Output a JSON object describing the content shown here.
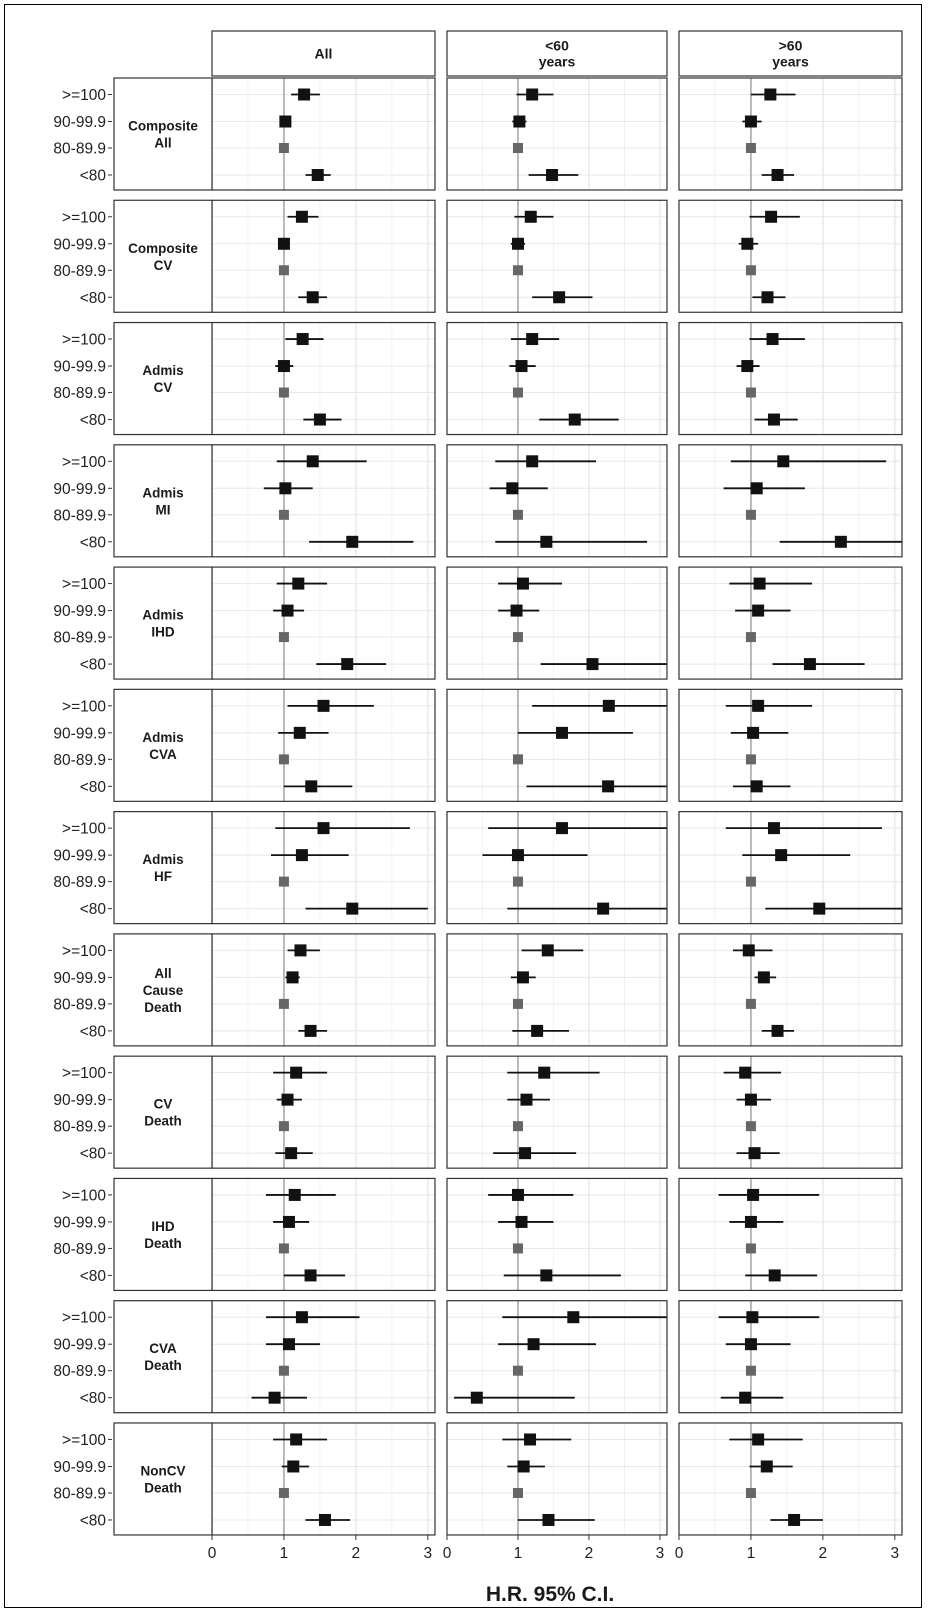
{
  "chart_data": {
    "type": "forest",
    "xlabel": "H.R. 95% C.I.",
    "xlim": [
      0,
      3.1
    ],
    "xticks": [
      0,
      1,
      2,
      3
    ],
    "reference_line": 1,
    "columns": [
      {
        "key": "all",
        "lines": [
          "All"
        ]
      },
      {
        "key": "lt60",
        "lines": [
          "<60",
          "years"
        ]
      },
      {
        "key": "gt60",
        "lines": [
          ">60",
          "years"
        ]
      }
    ],
    "categories": [
      ">=100",
      "90-99.9",
      "80-89.9",
      "<80"
    ],
    "reference_category": "80-89.9",
    "outcomes": [
      {
        "lines": [
          "Composite",
          "All"
        ],
        "data": {
          "all": [
            [
              1.28,
              1.1,
              1.5
            ],
            [
              1.02,
              0.95,
              1.1
            ],
            [
              1,
              1,
              1
            ],
            [
              1.47,
              1.3,
              1.65
            ]
          ],
          "lt60": [
            [
              1.2,
              0.98,
              1.5
            ],
            [
              1.02,
              0.92,
              1.12
            ],
            [
              1,
              1,
              1
            ],
            [
              1.48,
              1.15,
              1.85
            ]
          ],
          "gt60": [
            [
              1.27,
              1.0,
              1.62
            ],
            [
              1.0,
              0.88,
              1.15
            ],
            [
              1,
              1,
              1
            ],
            [
              1.37,
              1.15,
              1.6
            ]
          ]
        }
      },
      {
        "lines": [
          "Composite",
          "CV"
        ],
        "data": {
          "all": [
            [
              1.25,
              1.05,
              1.48
            ],
            [
              1.0,
              0.92,
              1.08
            ],
            [
              1,
              1,
              1
            ],
            [
              1.4,
              1.2,
              1.6
            ]
          ],
          "lt60": [
            [
              1.18,
              0.95,
              1.5
            ],
            [
              1.0,
              0.9,
              1.1
            ],
            [
              1,
              1,
              1
            ],
            [
              1.58,
              1.2,
              2.05
            ]
          ],
          "gt60": [
            [
              1.28,
              0.98,
              1.68
            ],
            [
              0.95,
              0.83,
              1.1
            ],
            [
              1,
              1,
              1
            ],
            [
              1.23,
              1.02,
              1.48
            ]
          ]
        }
      },
      {
        "lines": [
          "Admis",
          "CV"
        ],
        "data": {
          "all": [
            [
              1.26,
              1.02,
              1.55
            ],
            [
              1.0,
              0.88,
              1.13
            ],
            [
              1,
              1,
              1
            ],
            [
              1.5,
              1.27,
              1.8
            ]
          ],
          "lt60": [
            [
              1.2,
              0.9,
              1.58
            ],
            [
              1.05,
              0.88,
              1.25
            ],
            [
              1,
              1,
              1
            ],
            [
              1.8,
              1.3,
              2.42
            ]
          ],
          "gt60": [
            [
              1.3,
              0.98,
              1.75
            ],
            [
              0.95,
              0.8,
              1.12
            ],
            [
              1,
              1,
              1
            ],
            [
              1.32,
              1.05,
              1.65
            ]
          ]
        }
      },
      {
        "lines": [
          "Admis",
          "MI"
        ],
        "data": {
          "all": [
            [
              1.4,
              0.9,
              2.15
            ],
            [
              1.02,
              0.72,
              1.4
            ],
            [
              1,
              1,
              1
            ],
            [
              1.95,
              1.35,
              2.8
            ]
          ],
          "lt60": [
            [
              1.2,
              0.68,
              2.1
            ],
            [
              0.92,
              0.6,
              1.42
            ],
            [
              1,
              1,
              1
            ],
            [
              1.4,
              0.68,
              2.82
            ]
          ],
          "gt60": [
            [
              1.45,
              0.72,
              2.88
            ],
            [
              1.08,
              0.62,
              1.75
            ],
            [
              1,
              1,
              1
            ],
            [
              2.25,
              1.4,
              3.1
            ]
          ]
        }
      },
      {
        "lines": [
          "Admis",
          "IHD"
        ],
        "data": {
          "all": [
            [
              1.2,
              0.9,
              1.6
            ],
            [
              1.05,
              0.85,
              1.28
            ],
            [
              1,
              1,
              1
            ],
            [
              1.88,
              1.45,
              2.42
            ]
          ],
          "lt60": [
            [
              1.07,
              0.72,
              1.62
            ],
            [
              0.98,
              0.72,
              1.3
            ],
            [
              1,
              1,
              1
            ],
            [
              2.05,
              1.32,
              3.1
            ]
          ],
          "gt60": [
            [
              1.12,
              0.7,
              1.85
            ],
            [
              1.1,
              0.78,
              1.55
            ],
            [
              1,
              1,
              1
            ],
            [
              1.82,
              1.3,
              2.58
            ]
          ]
        }
      },
      {
        "lines": [
          "Admis",
          "CVA"
        ],
        "data": {
          "all": [
            [
              1.55,
              1.05,
              2.25
            ],
            [
              1.22,
              0.92,
              1.62
            ],
            [
              1,
              1,
              1
            ],
            [
              1.38,
              1.0,
              1.95
            ]
          ],
          "lt60": [
            [
              2.28,
              1.2,
              3.1
            ],
            [
              1.62,
              1.0,
              2.62
            ],
            [
              1,
              1,
              1
            ],
            [
              2.27,
              1.12,
              3.1
            ]
          ],
          "gt60": [
            [
              1.1,
              0.65,
              1.85
            ],
            [
              1.03,
              0.72,
              1.52
            ],
            [
              1,
              1,
              1
            ],
            [
              1.08,
              0.75,
              1.55
            ]
          ]
        }
      },
      {
        "lines": [
          "Admis",
          "HF"
        ],
        "data": {
          "all": [
            [
              1.55,
              0.88,
              2.75
            ],
            [
              1.25,
              0.82,
              1.9
            ],
            [
              1,
              1,
              1
            ],
            [
              1.95,
              1.3,
              3.0
            ]
          ],
          "lt60": [
            [
              1.62,
              0.58,
              3.1
            ],
            [
              1.0,
              0.5,
              1.98
            ],
            [
              1,
              1,
              1
            ],
            [
              2.2,
              0.85,
              3.1
            ]
          ],
          "gt60": [
            [
              1.32,
              0.65,
              2.82
            ],
            [
              1.42,
              0.88,
              2.38
            ],
            [
              1,
              1,
              1
            ],
            [
              1.95,
              1.2,
              3.1
            ]
          ]
        }
      },
      {
        "lines": [
          "All",
          "Cause",
          "Death"
        ],
        "data": {
          "all": [
            [
              1.23,
              1.05,
              1.5
            ],
            [
              1.12,
              1.02,
              1.22
            ],
            [
              1,
              1,
              1
            ],
            [
              1.37,
              1.2,
              1.6
            ]
          ],
          "lt60": [
            [
              1.42,
              1.05,
              1.92
            ],
            [
              1.07,
              0.9,
              1.25
            ],
            [
              1,
              1,
              1
            ],
            [
              1.27,
              0.92,
              1.72
            ]
          ],
          "gt60": [
            [
              0.97,
              0.75,
              1.3
            ],
            [
              1.18,
              1.05,
              1.35
            ],
            [
              1,
              1,
              1
            ],
            [
              1.37,
              1.15,
              1.6
            ]
          ]
        }
      },
      {
        "lines": [
          "CV",
          "Death"
        ],
        "data": {
          "all": [
            [
              1.17,
              0.85,
              1.6
            ],
            [
              1.05,
              0.9,
              1.25
            ],
            [
              1,
              1,
              1
            ],
            [
              1.1,
              0.88,
              1.4
            ]
          ],
          "lt60": [
            [
              1.37,
              0.85,
              2.15
            ],
            [
              1.12,
              0.85,
              1.45
            ],
            [
              1,
              1,
              1
            ],
            [
              1.1,
              0.65,
              1.82
            ]
          ],
          "gt60": [
            [
              0.92,
              0.62,
              1.42
            ],
            [
              1.0,
              0.8,
              1.28
            ],
            [
              1,
              1,
              1
            ],
            [
              1.05,
              0.8,
              1.4
            ]
          ]
        }
      },
      {
        "lines": [
          "IHD",
          "Death"
        ],
        "data": {
          "all": [
            [
              1.15,
              0.75,
              1.72
            ],
            [
              1.07,
              0.85,
              1.35
            ],
            [
              1,
              1,
              1
            ],
            [
              1.37,
              1.0,
              1.85
            ]
          ],
          "lt60": [
            [
              1.0,
              0.58,
              1.78
            ],
            [
              1.05,
              0.72,
              1.5
            ],
            [
              1,
              1,
              1
            ],
            [
              1.4,
              0.8,
              2.45
            ]
          ],
          "gt60": [
            [
              1.03,
              0.55,
              1.95
            ],
            [
              1.0,
              0.7,
              1.45
            ],
            [
              1,
              1,
              1
            ],
            [
              1.33,
              0.92,
              1.92
            ]
          ]
        }
      },
      {
        "lines": [
          "CVA",
          "Death"
        ],
        "data": {
          "all": [
            [
              1.25,
              0.75,
              2.05
            ],
            [
              1.07,
              0.75,
              1.5
            ],
            [
              1,
              1,
              1
            ],
            [
              0.87,
              0.55,
              1.32
            ]
          ],
          "lt60": [
            [
              1.78,
              0.78,
              3.1
            ],
            [
              1.22,
              0.72,
              2.1
            ],
            [
              1,
              1,
              1
            ],
            [
              0.42,
              0.1,
              1.8
            ]
          ],
          "gt60": [
            [
              1.02,
              0.55,
              1.95
            ],
            [
              1.0,
              0.65,
              1.55
            ],
            [
              1,
              1,
              1
            ],
            [
              0.92,
              0.58,
              1.45
            ]
          ]
        }
      },
      {
        "lines": [
          "NonCV",
          "Death"
        ],
        "data": {
          "all": [
            [
              1.17,
              0.85,
              1.6
            ],
            [
              1.13,
              0.97,
              1.35
            ],
            [
              1,
              1,
              1
            ],
            [
              1.57,
              1.3,
              1.92
            ]
          ],
          "lt60": [
            [
              1.17,
              0.78,
              1.75
            ],
            [
              1.08,
              0.85,
              1.38
            ],
            [
              1,
              1,
              1
            ],
            [
              1.43,
              1.0,
              2.08
            ]
          ],
          "gt60": [
            [
              1.1,
              0.7,
              1.72
            ],
            [
              1.22,
              0.98,
              1.58
            ],
            [
              1,
              1,
              1
            ],
            [
              1.6,
              1.27,
              2.0
            ]
          ]
        }
      }
    ],
    "colors": {
      "estimate": "#111111",
      "reference": "#666666",
      "refline": "#a9a9a9",
      "grid": "#e6e6e6"
    }
  }
}
